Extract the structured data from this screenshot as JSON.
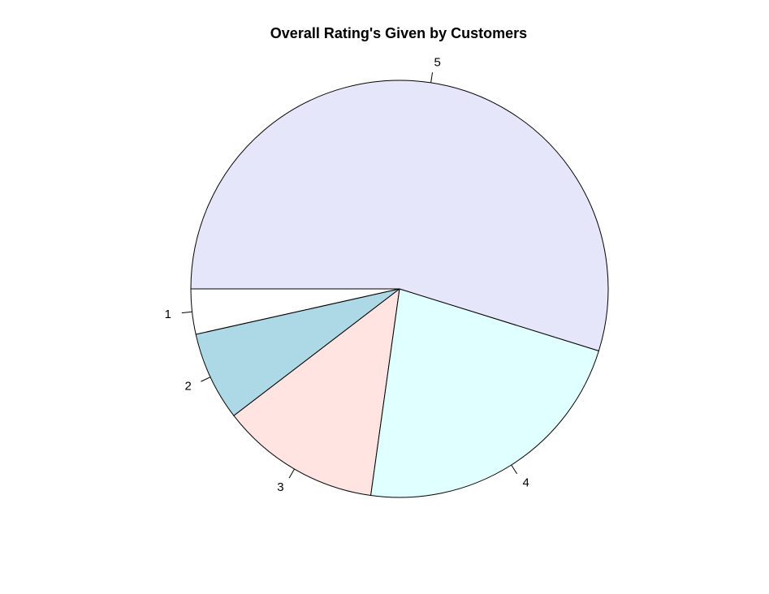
{
  "chart_data": {
    "type": "pie",
    "title": "Overall Rating's Given by Customers",
    "categories": [
      "1",
      "2",
      "3",
      "4",
      "5"
    ],
    "values": [
      3.5,
      6.9,
      12.4,
      22.4,
      54.8
    ],
    "colors": [
      "#FFFFFF",
      "#ADD8E6",
      "#FFE4E1",
      "#E0FFFF",
      "#E6E6FA"
    ],
    "start_angle_deg": 180,
    "direction": "counterclockwise",
    "legend": "none"
  }
}
